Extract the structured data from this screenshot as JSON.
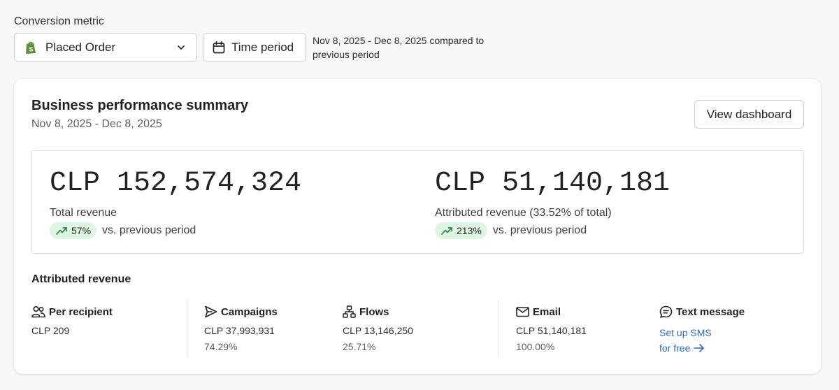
{
  "filters": {
    "conversion_label": "Conversion metric",
    "conversion_value": "Placed Order",
    "time_period_label": "Time period",
    "range_text": "Nov 8, 2025 - Dec 8, 2025 compared to previous period"
  },
  "card": {
    "title": "Business performance summary",
    "subtitle": "Nov 8, 2025 - Dec 8, 2025",
    "view_dashboard": "View dashboard"
  },
  "summary": {
    "total": {
      "value": "CLP 152,574,324",
      "label": "Total revenue",
      "change": "57%",
      "vs": "vs. previous period"
    },
    "attributed": {
      "value": "CLP 51,140,181",
      "label": "Attributed revenue (33.52% of total)",
      "change": "213%",
      "vs": "vs. previous period"
    }
  },
  "attributed": {
    "title": "Attributed revenue",
    "per_recipient": {
      "label": "Per recipient",
      "value": "CLP 209",
      "icon": "people-icon"
    },
    "campaigns": {
      "label": "Campaigns",
      "value": "CLP 37,993,931",
      "pct": "74.29%",
      "icon": "send-icon"
    },
    "flows": {
      "label": "Flows",
      "value": "CLP 13,146,250",
      "pct": "25.71%",
      "icon": "flow-icon"
    },
    "email": {
      "label": "Email",
      "value": "CLP 51,140,181",
      "pct": "100.00%",
      "icon": "mail-icon"
    },
    "sms": {
      "label": "Text message",
      "link_line1": "Set up SMS",
      "link_line2": "for free",
      "icon": "chat-icon"
    }
  },
  "colors": {
    "badge_bg": "#dff5e4",
    "trend_green": "#2a8a3e",
    "link_blue": "#2d6ac9",
    "shopify_green": "#5e8e3e"
  }
}
